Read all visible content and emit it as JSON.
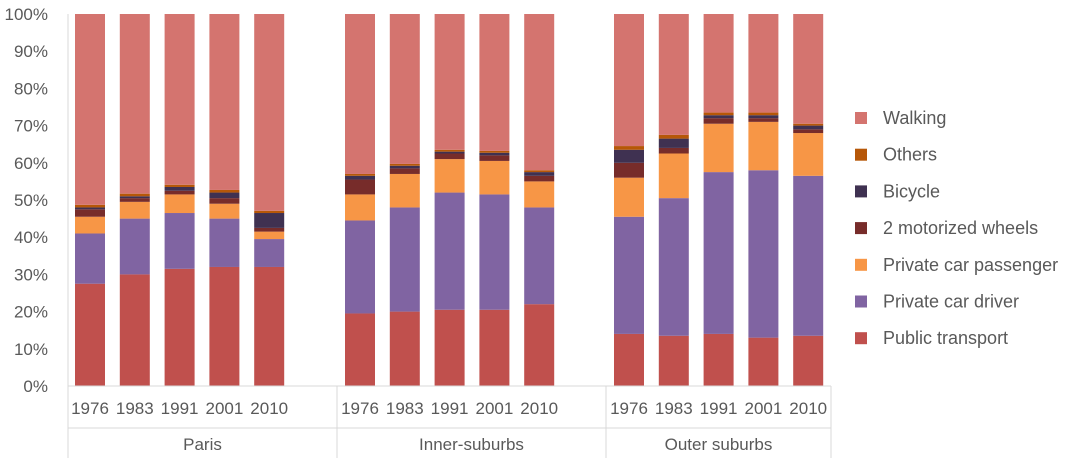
{
  "chart_data": {
    "type": "bar",
    "stacked": true,
    "percent": true,
    "ylim": [
      0,
      100
    ],
    "y_ticks": [
      "0%",
      "10%",
      "20%",
      "30%",
      "40%",
      "50%",
      "60%",
      "70%",
      "80%",
      "90%",
      "100%"
    ],
    "grid": false,
    "legend_position": "right",
    "groups": [
      {
        "name": "Paris",
        "categories": [
          "1976",
          "1983",
          "1991",
          "2001",
          "2010"
        ]
      },
      {
        "name": "Inner-suburbs",
        "categories": [
          "1976",
          "1983",
          "1991",
          "2001",
          "2010"
        ]
      },
      {
        "name": "Outer suburbs",
        "categories": [
          "1976",
          "1983",
          "1991",
          "2001",
          "2010"
        ]
      }
    ],
    "series": [
      {
        "name": "Public transport",
        "color": "#C0504D",
        "values": [
          27.5,
          30,
          31.5,
          32,
          32,
          19.5,
          20,
          20.5,
          20.5,
          22,
          14,
          13.5,
          14,
          13,
          13.5
        ]
      },
      {
        "name": "Private car driver",
        "color": "#8064A2",
        "values": [
          13.5,
          15,
          15,
          13,
          7.5,
          25,
          28,
          31.5,
          31,
          26,
          31.5,
          37,
          43.5,
          45,
          43
        ]
      },
      {
        "name": "Private car passenger",
        "color": "#F79646",
        "values": [
          4.5,
          4.5,
          5,
          4,
          2,
          7,
          9,
          9,
          9,
          7,
          10.5,
          12,
          13,
          13,
          11.5
        ]
      },
      {
        "name": "2 motorized wheels",
        "color": "#772C2A",
        "values": [
          2,
          1,
          1,
          1.5,
          1,
          4,
          1.5,
          1.5,
          1.5,
          1.5,
          4,
          1.5,
          1.5,
          1,
          1
        ]
      },
      {
        "name": "Bicycle",
        "color": "#3F3151",
        "values": [
          0.5,
          0.5,
          1,
          1.5,
          4,
          1,
          0.7,
          0.5,
          0.7,
          1,
          3.5,
          2.5,
          0.8,
          0.8,
          1
        ]
      },
      {
        "name": "Others",
        "color": "#B65708",
        "values": [
          0.7,
          0.7,
          0.6,
          0.7,
          0.6,
          0.5,
          0.5,
          0.5,
          0.5,
          0.5,
          1,
          1,
          0.7,
          0.7,
          0.5
        ]
      },
      {
        "name": "Walking",
        "color": "#D4746F",
        "values": [
          51.3,
          48.3,
          45.9,
          47.3,
          52.9,
          43,
          40.3,
          36.5,
          36.8,
          42,
          35.5,
          32.5,
          26.5,
          26.5,
          29.5
        ]
      }
    ],
    "legend_order": [
      "Walking",
      "Others",
      "Bicycle",
      "2 motorized wheels",
      "Private car passenger",
      "Private car driver",
      "Public transport"
    ]
  }
}
